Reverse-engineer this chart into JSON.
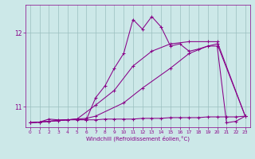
{
  "xlabel": "Windchill (Refroidissement éolien,°C)",
  "bg_color": "#cce8e8",
  "grid_color": "#9bbfbf",
  "line_color": "#880088",
  "xlim": [
    -0.5,
    23.5
  ],
  "ylim": [
    10.72,
    12.38
  ],
  "yticks": [
    11,
    12
  ],
  "xticks": [
    0,
    1,
    2,
    3,
    4,
    5,
    6,
    7,
    8,
    9,
    10,
    11,
    12,
    13,
    14,
    15,
    16,
    17,
    18,
    19,
    20,
    21,
    22,
    23
  ],
  "series_zigzag_x": [
    0,
    1,
    2,
    3,
    4,
    5,
    6,
    7,
    8,
    9,
    10,
    11,
    12,
    13,
    14,
    15,
    16,
    17,
    18,
    19,
    20,
    21,
    22,
    23
  ],
  "series_zigzag_y": [
    10.78,
    10.79,
    10.83,
    10.82,
    10.82,
    10.83,
    10.82,
    11.12,
    11.28,
    11.52,
    11.72,
    12.18,
    12.05,
    12.22,
    12.08,
    11.82,
    11.85,
    11.75,
    11.78,
    11.82,
    11.82,
    10.78,
    10.8,
    10.87
  ],
  "series_flat_x": [
    0,
    1,
    2,
    3,
    4,
    5,
    6,
    7,
    8,
    9,
    10,
    11,
    12,
    13,
    14,
    15,
    16,
    17,
    18,
    19,
    20,
    21,
    22,
    23
  ],
  "series_flat_y": [
    10.78,
    10.79,
    10.8,
    10.81,
    10.82,
    10.82,
    10.82,
    10.82,
    10.83,
    10.83,
    10.83,
    10.83,
    10.84,
    10.84,
    10.84,
    10.85,
    10.85,
    10.85,
    10.85,
    10.86,
    10.86,
    10.86,
    10.86,
    10.87
  ],
  "series_diag1_x": [
    0,
    2,
    4,
    6,
    7,
    10,
    12,
    15,
    17,
    19,
    20,
    23
  ],
  "series_diag1_y": [
    10.78,
    10.8,
    10.82,
    10.84,
    10.87,
    11.05,
    11.25,
    11.52,
    11.72,
    11.82,
    11.85,
    10.87
  ],
  "series_diag2_x": [
    0,
    3,
    5,
    7,
    9,
    11,
    13,
    15,
    17,
    19,
    20,
    23
  ],
  "series_diag2_y": [
    10.78,
    10.81,
    10.83,
    11.02,
    11.22,
    11.55,
    11.75,
    11.85,
    11.88,
    11.88,
    11.88,
    10.87
  ]
}
